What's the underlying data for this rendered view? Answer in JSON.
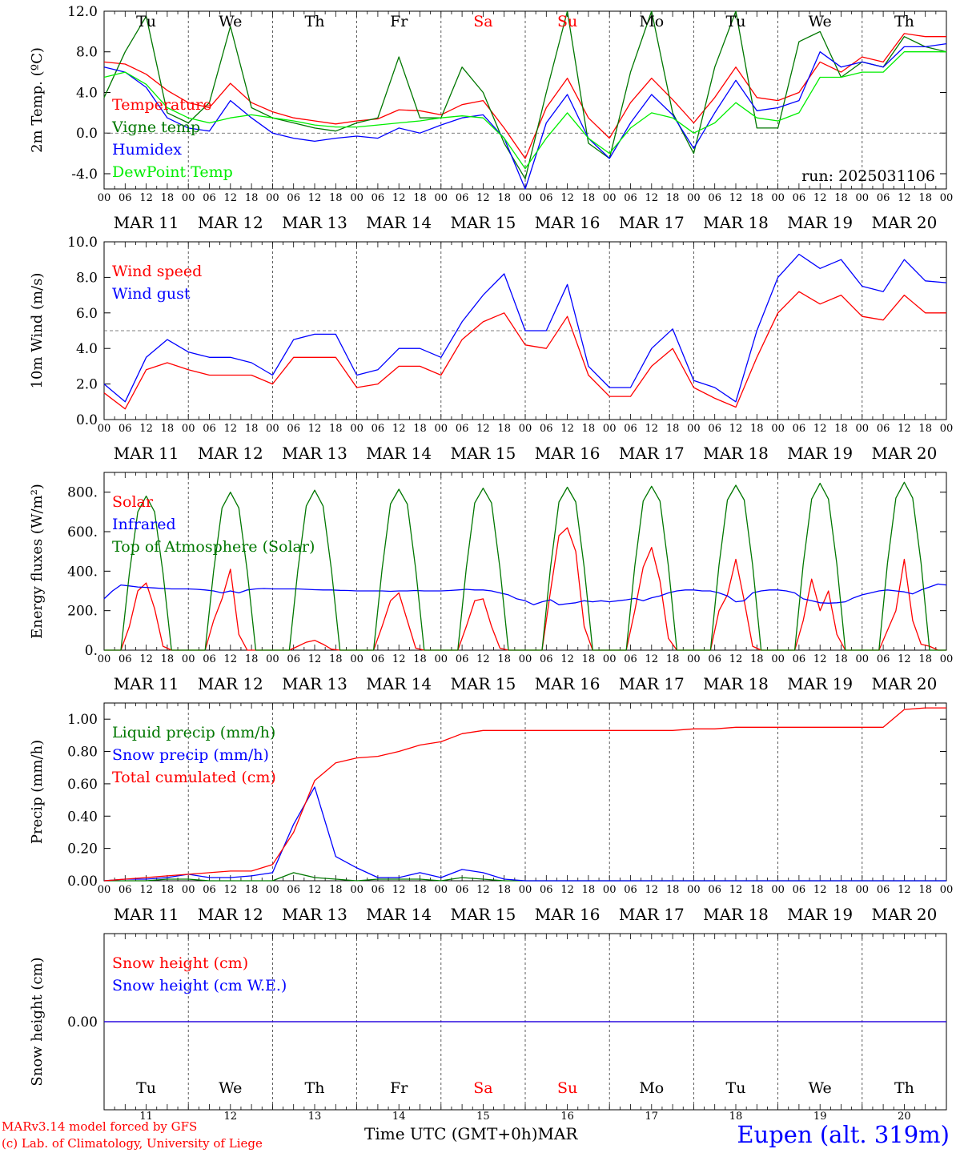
{
  "days": [
    "Tu",
    "We",
    "Th",
    "Fr",
    "Sa",
    "Su",
    "Mo",
    "Tu",
    "We",
    "Th"
  ],
  "day_colors": [
    "#000000",
    "#000000",
    "#000000",
    "#000000",
    "#ff0000",
    "#ff0000",
    "#000000",
    "#000000",
    "#000000",
    "#000000"
  ],
  "dates": [
    "MAR 11",
    "MAR 12",
    "MAR 13",
    "MAR 14",
    "MAR 15",
    "MAR 16",
    "MAR 17",
    "MAR 18",
    "MAR 19",
    "MAR 20"
  ],
  "day_numbers": [
    "11",
    "12",
    "13",
    "14",
    "15",
    "16",
    "17",
    "18",
    "19",
    "20"
  ],
  "hour_labels": [
    "00",
    "06",
    "12",
    "18"
  ],
  "footer": {
    "model": "MARv3.14 model forced by GFS",
    "copyright": "(c) Lab. of Climatology, University of Liege",
    "time_label": "Time UTC (GMT+0h)MAR",
    "station": "Eupen (alt. 319m)"
  },
  "chart_data": [
    {
      "type": "line",
      "ylabel": "2m Temp. (ºC)",
      "ylim": [
        -5.5,
        12
      ],
      "yticks": [
        12.0,
        8.0,
        4.0,
        0.0,
        -4.0
      ],
      "ytick_labels": [
        "12.0",
        "8.0",
        "4.0",
        "0.0",
        "-4.0"
      ],
      "dashed_y": 0,
      "annotation": "run: 2025031106",
      "x_days": [
        0,
        0.25,
        0.5,
        0.75,
        1,
        1.25,
        1.5,
        1.75,
        2,
        2.25,
        2.5,
        2.75,
        3,
        3.25,
        3.5,
        3.75,
        4,
        4.25,
        4.5,
        4.75,
        5,
        5.25,
        5.5,
        5.75,
        6,
        6.25,
        6.5,
        6.75,
        7,
        7.25,
        7.5,
        7.75,
        8,
        8.25,
        8.5,
        8.75,
        9,
        9.25,
        9.5,
        9.75,
        10
      ],
      "series": [
        {
          "name": "Temperature",
          "color": "#ff0000",
          "values": [
            7.0,
            6.8,
            5.8,
            4.2,
            3.0,
            2.5,
            4.9,
            3.0,
            2.1,
            1.5,
            1.2,
            0.9,
            1.2,
            1.4,
            2.3,
            2.2,
            1.8,
            2.8,
            3.2,
            0.5,
            -2.5,
            2.5,
            5.4,
            1.5,
            -0.5,
            3.0,
            5.4,
            3.3,
            1.0,
            3.5,
            6.5,
            3.5,
            3.2,
            4.0,
            7.0,
            6.0,
            7.5,
            7.0,
            9.8,
            9.5,
            9.5
          ]
        },
        {
          "name": "Vigne temp",
          "color": "#007700",
          "values": [
            3.5,
            8.0,
            11.5,
            2.0,
            1.0,
            3.0,
            10.5,
            2.5,
            1.5,
            1.0,
            0.5,
            0.2,
            1.0,
            1.5,
            7.5,
            1.5,
            1.5,
            6.5,
            4.0,
            -1.0,
            -4.5,
            4.0,
            12.0,
            -1.0,
            -2.5,
            6.0,
            12.0,
            2.0,
            -2.0,
            6.5,
            12.0,
            0.5,
            0.5,
            9.0,
            10.0,
            5.5,
            7.0,
            6.5,
            9.5,
            8.5,
            8.0
          ]
        },
        {
          "name": "Humidex",
          "color": "#0000ff",
          "values": [
            6.5,
            6.0,
            4.5,
            1.5,
            0.5,
            0.2,
            3.2,
            1.5,
            0.0,
            -0.5,
            -0.8,
            -0.5,
            -0.3,
            -0.5,
            0.5,
            0.0,
            0.8,
            1.5,
            1.8,
            -0.5,
            -5.5,
            1.0,
            3.8,
            -0.5,
            -2.5,
            1.0,
            3.8,
            1.8,
            -1.5,
            2.0,
            5.2,
            2.2,
            2.5,
            3.2,
            8.0,
            6.5,
            7.0,
            6.5,
            8.5,
            8.5,
            8.8
          ]
        },
        {
          "name": "DewPoint Temp",
          "color": "#00ee00",
          "values": [
            5.5,
            6.0,
            4.8,
            2.5,
            1.5,
            1.0,
            1.5,
            1.8,
            1.5,
            1.2,
            0.8,
            0.6,
            0.6,
            0.8,
            1.0,
            1.2,
            1.5,
            1.7,
            1.5,
            -0.5,
            -3.5,
            -0.5,
            2.0,
            -0.5,
            -2.0,
            0.5,
            2.0,
            1.5,
            0.0,
            1.0,
            3.0,
            1.5,
            1.2,
            2.0,
            5.5,
            5.5,
            6.0,
            6.0,
            8.0,
            8.0,
            8.0
          ]
        }
      ]
    },
    {
      "type": "line",
      "ylabel": "10m Wind (m/s)",
      "ylim": [
        0,
        10
      ],
      "yticks": [
        10.0,
        8.0,
        6.0,
        4.0,
        2.0,
        0.0
      ],
      "ytick_labels": [
        "10.0",
        "8.0",
        "6.0",
        "4.0",
        "2.0",
        "0.0"
      ],
      "dashed_y": 5,
      "annotation": "",
      "x_days": [
        0,
        0.25,
        0.5,
        0.75,
        1,
        1.25,
        1.5,
        1.75,
        2,
        2.25,
        2.5,
        2.75,
        3,
        3.25,
        3.5,
        3.75,
        4,
        4.25,
        4.5,
        4.75,
        5,
        5.25,
        5.5,
        5.75,
        6,
        6.25,
        6.5,
        6.75,
        7,
        7.25,
        7.5,
        7.75,
        8,
        8.25,
        8.5,
        8.75,
        9,
        9.25,
        9.5,
        9.75,
        10
      ],
      "series": [
        {
          "name": "Wind speed",
          "color": "#ff0000",
          "values": [
            1.5,
            0.6,
            2.8,
            3.2,
            2.8,
            2.5,
            2.5,
            2.5,
            2.0,
            3.5,
            3.5,
            3.5,
            1.8,
            2.0,
            3.0,
            3.0,
            2.5,
            4.5,
            5.5,
            6.0,
            4.2,
            4.0,
            5.8,
            2.5,
            1.3,
            1.3,
            3.0,
            4.0,
            1.8,
            1.2,
            0.7,
            3.5,
            6.0,
            7.2,
            6.5,
            7.0,
            5.8,
            5.6,
            7.0,
            6.0,
            6.0
          ]
        },
        {
          "name": "Wind gust",
          "color": "#0000ff",
          "values": [
            2.0,
            1.0,
            3.5,
            4.5,
            3.8,
            3.5,
            3.5,
            3.2,
            2.5,
            4.5,
            4.8,
            4.8,
            2.5,
            2.8,
            4.0,
            4.0,
            3.5,
            5.5,
            7.0,
            8.2,
            5.0,
            5.0,
            7.6,
            3.0,
            1.8,
            1.8,
            4.0,
            5.1,
            2.2,
            1.8,
            1.0,
            5.0,
            8.0,
            9.3,
            8.5,
            9.0,
            7.5,
            7.2,
            9.0,
            7.8,
            7.7
          ]
        }
      ]
    },
    {
      "type": "line",
      "ylabel": "Energy fluxes (W/m²)",
      "ylim": [
        0,
        900
      ],
      "yticks": [
        800,
        600,
        400,
        200,
        0
      ],
      "ytick_labels": [
        "800.",
        "600.",
        "400.",
        "200.",
        "0."
      ],
      "dashed_y": null,
      "annotation": "",
      "x_days": [
        0,
        0.1,
        0.2,
        0.3,
        0.4,
        0.5,
        0.6,
        0.7,
        0.8,
        0.9,
        1,
        1.1,
        1.2,
        1.3,
        1.4,
        1.5,
        1.6,
        1.7,
        1.8,
        1.9,
        2,
        2.1,
        2.2,
        2.3,
        2.4,
        2.5,
        2.6,
        2.7,
        2.8,
        2.9,
        3,
        3.1,
        3.2,
        3.3,
        3.4,
        3.5,
        3.6,
        3.7,
        3.8,
        3.9,
        4,
        4.1,
        4.2,
        4.3,
        4.4,
        4.5,
        4.6,
        4.7,
        4.8,
        4.9,
        5,
        5.1,
        5.2,
        5.3,
        5.4,
        5.5,
        5.6,
        5.7,
        5.8,
        5.9,
        6,
        6.1,
        6.2,
        6.3,
        6.4,
        6.5,
        6.6,
        6.7,
        6.8,
        6.9,
        7,
        7.1,
        7.2,
        7.3,
        7.4,
        7.5,
        7.6,
        7.7,
        7.8,
        7.9,
        8,
        8.1,
        8.2,
        8.3,
        8.4,
        8.5,
        8.6,
        8.7,
        8.8,
        8.9,
        9,
        9.1,
        9.2,
        9.3,
        9.4,
        9.5,
        9.6,
        9.7,
        9.8,
        9.9,
        10
      ],
      "series": [
        {
          "name": "Solar",
          "color": "#ff0000",
          "values": [
            0,
            0,
            0,
            120,
            300,
            340,
            210,
            20,
            0,
            0,
            0,
            0,
            0,
            150,
            260,
            410,
            80,
            0,
            0,
            0,
            0,
            0,
            0,
            20,
            40,
            50,
            30,
            5,
            0,
            0,
            0,
            0,
            0,
            120,
            250,
            290,
            150,
            10,
            0,
            0,
            0,
            0,
            0,
            120,
            250,
            260,
            120,
            10,
            0,
            0,
            0,
            0,
            0,
            300,
            580,
            620,
            500,
            120,
            0,
            0,
            0,
            0,
            0,
            200,
            420,
            520,
            350,
            60,
            0,
            0,
            0,
            0,
            0,
            200,
            280,
            460,
            250,
            20,
            0,
            0,
            0,
            0,
            0,
            150,
            360,
            200,
            300,
            80,
            0,
            0,
            0,
            0,
            0,
            100,
            200,
            460,
            150,
            30,
            20,
            0,
            0
          ]
        },
        {
          "name": "Infrared",
          "color": "#0000ff",
          "values": [
            260,
            300,
            330,
            325,
            320,
            318,
            315,
            312,
            310,
            310,
            310,
            308,
            305,
            300,
            290,
            300,
            290,
            305,
            310,
            312,
            310,
            310,
            310,
            310,
            308,
            306,
            305,
            305,
            303,
            302,
            300,
            300,
            300,
            300,
            298,
            300,
            300,
            302,
            300,
            300,
            300,
            302,
            305,
            308,
            305,
            305,
            300,
            290,
            280,
            260,
            250,
            230,
            245,
            255,
            230,
            235,
            240,
            250,
            245,
            250,
            245,
            250,
            255,
            262,
            250,
            265,
            275,
            290,
            300,
            305,
            305,
            300,
            300,
            290,
            275,
            245,
            250,
            290,
            300,
            305,
            305,
            300,
            290,
            260,
            250,
            240,
            238,
            240,
            245,
            265,
            280,
            290,
            300,
            305,
            300,
            295,
            285,
            305,
            320,
            335,
            330
          ]
        },
        {
          "name": "Top of Atmosphere (Solar)",
          "color": "#007700",
          "values": [
            0,
            0,
            0,
            390,
            700,
            780,
            700,
            390,
            0,
            0,
            0,
            0,
            0,
            400,
            720,
            800,
            720,
            400,
            0,
            0,
            0,
            0,
            0,
            405,
            730,
            810,
            730,
            405,
            0,
            0,
            0,
            0,
            0,
            410,
            740,
            815,
            740,
            410,
            0,
            0,
            0,
            0,
            0,
            415,
            745,
            820,
            745,
            415,
            0,
            0,
            0,
            0,
            0,
            420,
            750,
            825,
            750,
            420,
            0,
            0,
            0,
            0,
            0,
            425,
            755,
            830,
            755,
            425,
            0,
            0,
            0,
            0,
            0,
            430,
            760,
            835,
            760,
            430,
            0,
            0,
            0,
            0,
            0,
            435,
            765,
            845,
            765,
            435,
            0,
            0,
            0,
            0,
            0,
            440,
            770,
            850,
            770,
            440,
            0,
            0,
            0
          ]
        }
      ]
    },
    {
      "type": "line",
      "ylabel": "Precip (mm/h)",
      "ylim": [
        0,
        1.1
      ],
      "yticks": [
        1.0,
        0.8,
        0.6,
        0.4,
        0.2,
        0.0
      ],
      "ytick_labels": [
        "1.00",
        "0.80",
        "0.60",
        "0.40",
        "0.20",
        "0.00"
      ],
      "dashed_y": null,
      "annotation": "",
      "x_days": [
        0,
        0.25,
        0.5,
        0.75,
        1,
        1.25,
        1.5,
        1.75,
        2,
        2.25,
        2.5,
        2.75,
        3,
        3.25,
        3.5,
        3.75,
        4,
        4.25,
        4.5,
        4.75,
        5,
        5.25,
        5.5,
        5.75,
        6,
        6.25,
        6.5,
        6.75,
        7,
        7.25,
        7.5,
        7.75,
        8,
        8.25,
        8.5,
        8.75,
        9,
        9.25,
        9.5,
        9.75,
        10
      ],
      "series": [
        {
          "name": "Liquid precip (mm/h)",
          "color": "#007700",
          "values": [
            0,
            0,
            0,
            0.01,
            0.01,
            0,
            0,
            0,
            0,
            0.05,
            0.02,
            0.01,
            0,
            0.01,
            0.01,
            0.01,
            0,
            0.02,
            0.01,
            0,
            0,
            0,
            0,
            0,
            0,
            0,
            0,
            0,
            0,
            0,
            0,
            0,
            0,
            0,
            0,
            0,
            0,
            0,
            0,
            0,
            0
          ]
        },
        {
          "name": "Snow precip (mm/h)",
          "color": "#0000ff",
          "values": [
            0,
            0.01,
            0.01,
            0.02,
            0.04,
            0.02,
            0.02,
            0.03,
            0.05,
            0.35,
            0.58,
            0.15,
            0.08,
            0.02,
            0.02,
            0.05,
            0.02,
            0.07,
            0.05,
            0.01,
            0,
            0,
            0,
            0,
            0,
            0,
            0,
            0,
            0,
            0,
            0,
            0,
            0,
            0,
            0,
            0,
            0,
            0,
            0,
            0,
            0
          ]
        },
        {
          "name": "Total cumulated (cm)",
          "color": "#ff0000",
          "values": [
            0,
            0.01,
            0.02,
            0.03,
            0.04,
            0.05,
            0.06,
            0.06,
            0.1,
            0.3,
            0.62,
            0.73,
            0.76,
            0.77,
            0.8,
            0.84,
            0.86,
            0.91,
            0.93,
            0.93,
            0.93,
            0.93,
            0.93,
            0.93,
            0.93,
            0.93,
            0.93,
            0.93,
            0.94,
            0.94,
            0.95,
            0.95,
            0.95,
            0.95,
            0.95,
            0.95,
            0.95,
            0.95,
            1.06,
            1.07,
            1.07
          ]
        }
      ]
    },
    {
      "type": "line",
      "ylabel": "Snow height (cm)",
      "ylim": [
        -1,
        1
      ],
      "yticks": [
        0.0
      ],
      "ytick_labels": [
        "0.00"
      ],
      "dashed_y": null,
      "annotation": "",
      "x_days": [
        0,
        10
      ],
      "series": [
        {
          "name": "Snow height (cm)",
          "color": "#ff0000",
          "values": [
            0,
            0
          ]
        },
        {
          "name": "Snow height (cm W.E.)",
          "color": "#0000ff",
          "values": [
            0,
            0
          ]
        }
      ]
    }
  ]
}
